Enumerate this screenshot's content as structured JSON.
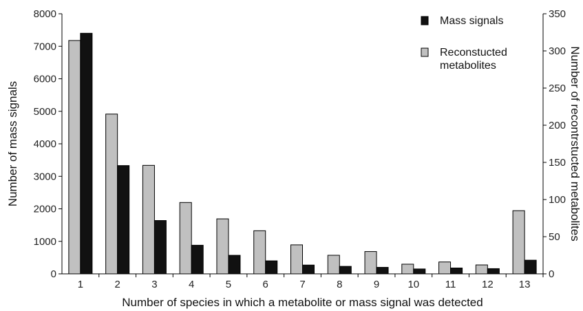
{
  "chart_data": {
    "type": "bar",
    "title": "",
    "categories": [
      "1",
      "2",
      "3",
      "4",
      "5",
      "6",
      "7",
      "8",
      "9",
      "10",
      "11",
      "12",
      "13"
    ],
    "xlabel": "Number of species in which a metabolite or mass signal was detected",
    "ylabel_left": "Number of mass signals",
    "ylabel_right": "Number of recontrstucted metabolites",
    "ylim_left": [
      0,
      8000
    ],
    "yticks_left": [
      0,
      1000,
      2000,
      3000,
      4000,
      5000,
      6000,
      7000,
      8000
    ],
    "ylim_right": [
      0,
      350
    ],
    "yticks_right": [
      0,
      50,
      100,
      150,
      200,
      250,
      300,
      350
    ],
    "grid": false,
    "legend_position": "top-right",
    "series": [
      {
        "name": "Reconstucted metabolites",
        "axis": "right",
        "color": "#c0c0c0",
        "values": [
          314,
          215,
          146,
          96,
          74,
          58,
          39,
          25,
          30,
          13,
          16,
          12,
          85
        ]
      },
      {
        "name": "Mass signals",
        "axis": "left",
        "color": "#111111",
        "values": [
          7400,
          3330,
          1640,
          880,
          570,
          400,
          270,
          230,
          200,
          150,
          180,
          160,
          420
        ]
      }
    ],
    "legend": [
      {
        "label": "Mass signals",
        "color": "#111111"
      },
      {
        "label": "Reconstucted\nmetabolites",
        "color": "#c0c0c0"
      }
    ]
  }
}
